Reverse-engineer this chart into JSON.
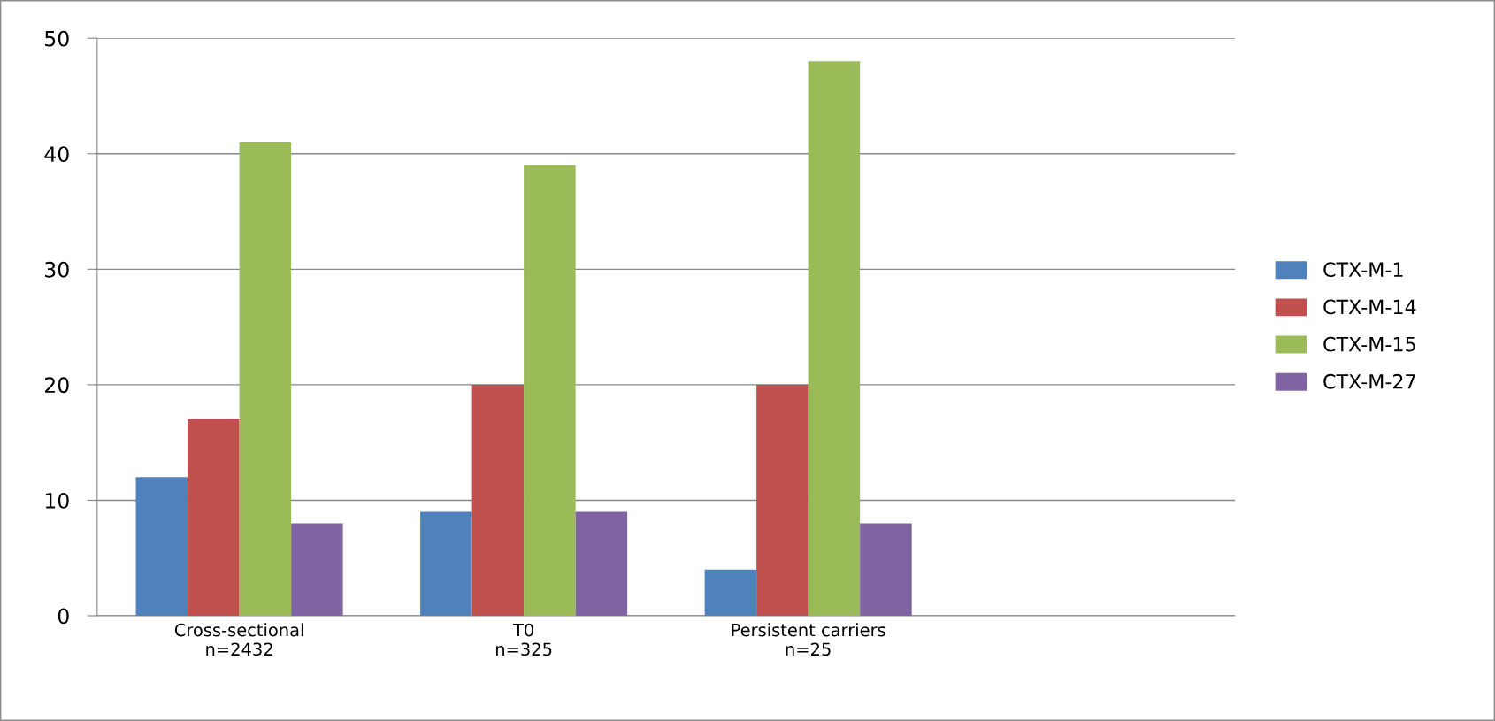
{
  "chart_data": {
    "type": "bar",
    "categories": [
      "Cross-sectional\nn=2432",
      "T0\nn=325",
      "Persistent carriers\nn=25",
      null
    ],
    "series": [
      {
        "name": "CTX-M-1",
        "color": "#4f81bd",
        "values": [
          12,
          9,
          4,
          null
        ]
      },
      {
        "name": "CTX-M-14",
        "color": "#c0504d",
        "values": [
          17,
          20,
          20,
          null
        ]
      },
      {
        "name": "CTX-M-15",
        "color": "#9bbb59",
        "values": [
          41,
          39,
          48,
          null
        ]
      },
      {
        "name": "CTX-M-27",
        "color": "#8064a2",
        "values": [
          8,
          9,
          8,
          null
        ]
      }
    ],
    "ylim": [
      0,
      50
    ],
    "yticks": [
      0,
      10,
      20,
      30,
      40,
      50
    ],
    "grid": "y",
    "legend": "right"
  }
}
